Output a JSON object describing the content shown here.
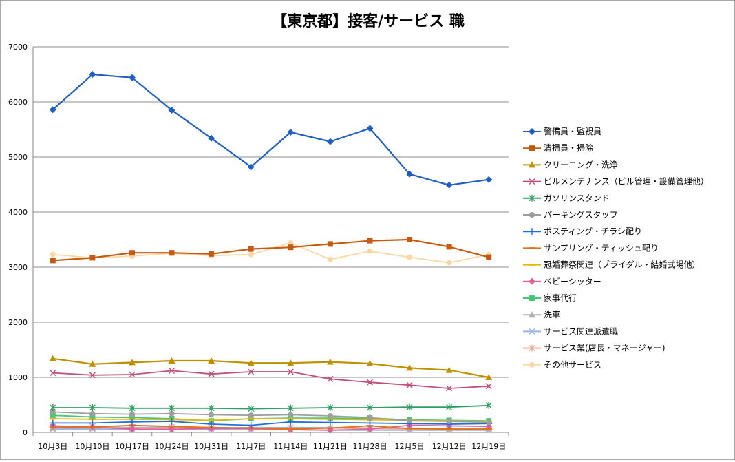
{
  "chart_data": {
    "type": "line",
    "title": "【東京都】接客/サービス 職",
    "xlabel": "",
    "ylabel": "",
    "ylim": [
      0,
      7000
    ],
    "yticks": [
      0,
      1000,
      2000,
      3000,
      4000,
      5000,
      6000,
      7000
    ],
    "grid": "horizontal",
    "legend": "right",
    "categories": [
      "10月3日",
      "10月10日",
      "10月17日",
      "10月24日",
      "10月31日",
      "11月7日",
      "11月14日",
      "11月21日",
      "11月28日",
      "12月5日",
      "12月12日",
      "12月19日"
    ],
    "series": [
      {
        "name": "警備員・監視員",
        "color": "#1f5fbf",
        "marker": "diamond",
        "values": [
          5860,
          6500,
          6440,
          5850,
          5340,
          4820,
          5450,
          5280,
          5520,
          4690,
          4490,
          4590
        ]
      },
      {
        "name": "清掃員・掃除",
        "color": "#c55a11",
        "marker": "square",
        "values": [
          3120,
          3170,
          3260,
          3260,
          3240,
          3330,
          3360,
          3420,
          3480,
          3500,
          3370,
          3180
        ]
      },
      {
        "name": "クリーニング・洗浄",
        "color": "#bf9000",
        "marker": "triangle",
        "values": [
          1340,
          1240,
          1270,
          1300,
          1300,
          1260,
          1260,
          1280,
          1250,
          1170,
          1130,
          1000
        ]
      },
      {
        "name": "ビルメンテナンス（ビル管理・設備管理他）",
        "color": "#c0507a",
        "marker": "x",
        "values": [
          1080,
          1040,
          1050,
          1120,
          1060,
          1100,
          1100,
          970,
          910,
          860,
          800,
          840
        ]
      },
      {
        "name": "ガソリンスタンド",
        "color": "#2e9e62",
        "marker": "star",
        "values": [
          450,
          450,
          440,
          440,
          440,
          430,
          440,
          450,
          450,
          460,
          460,
          490
        ]
      },
      {
        "name": "パーキングスタッフ",
        "color": "#9e9e9e",
        "marker": "circle",
        "values": [
          370,
          340,
          330,
          340,
          320,
          310,
          320,
          300,
          270,
          210,
          200,
          180
        ]
      },
      {
        "name": "ポスティング・チラシ配り",
        "color": "#1f6fdf",
        "marker": "plus",
        "values": [
          170,
          170,
          190,
          200,
          150,
          130,
          190,
          180,
          170,
          160,
          150,
          160
        ]
      },
      {
        "name": "サンプリング・ティッシュ配り",
        "color": "#e0701a",
        "marker": "dash",
        "values": [
          90,
          100,
          130,
          110,
          90,
          80,
          60,
          80,
          120,
          70,
          60,
          60
        ]
      },
      {
        "name": "冠婚葬祭関連（ブライダル・結婚式場他）",
        "color": "#e6b800",
        "marker": "dash",
        "values": [
          250,
          240,
          240,
          230,
          220,
          250,
          250,
          240,
          230,
          220,
          210,
          200
        ]
      },
      {
        "name": "ベビーシッター",
        "color": "#e0609a",
        "marker": "diamond",
        "values": [
          120,
          100,
          60,
          60,
          70,
          70,
          50,
          40,
          60,
          130,
          120,
          110
        ]
      },
      {
        "name": "家事代行",
        "color": "#44c97a",
        "marker": "square",
        "values": [
          310,
          280,
          270,
          250,
          210,
          250,
          260,
          260,
          260,
          230,
          220,
          210
        ]
      },
      {
        "name": "洗車",
        "color": "#b0b0b0",
        "marker": "triangle",
        "values": [
          80,
          80,
          90,
          90,
          80,
          90,
          90,
          90,
          80,
          80,
          70,
          70
        ]
      },
      {
        "name": "サービス関連派遣職",
        "color": "#9ab4e6",
        "marker": "x",
        "values": [
          60,
          60,
          60,
          50,
          50,
          50,
          50,
          40,
          40,
          40,
          40,
          40
        ]
      },
      {
        "name": "サービス業(店長・マネージャー)",
        "color": "#f0a898",
        "marker": "star",
        "values": [
          100,
          110,
          90,
          100,
          90,
          80,
          90,
          80,
          70,
          60,
          60,
          60
        ]
      },
      {
        "name": "その他サービス",
        "color": "#fcd7a4",
        "marker": "circle",
        "values": [
          3230,
          3170,
          3200,
          3250,
          3210,
          3230,
          3440,
          3140,
          3290,
          3180,
          3080,
          3230
        ]
      }
    ]
  }
}
